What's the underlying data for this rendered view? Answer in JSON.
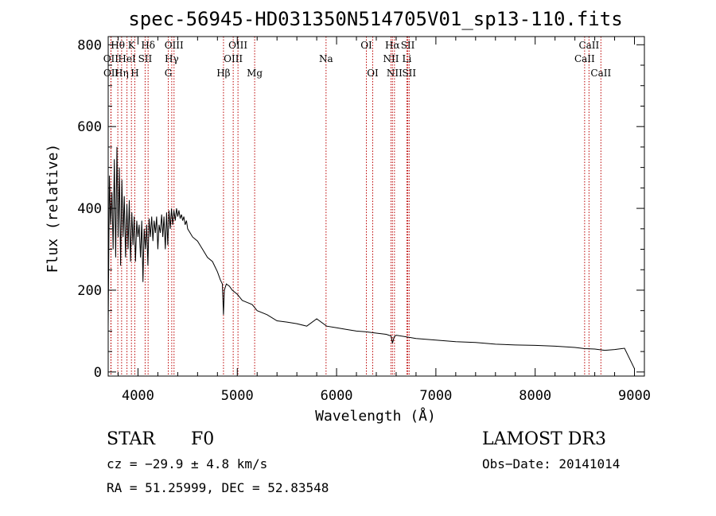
{
  "chart_data": {
    "type": "line",
    "title": "spec-56945-HD031350N514705V01_sp13-110.fits",
    "xlabel": "Wavelength (Å)",
    "ylabel": "Flux (relative)",
    "xlim": [
      3700,
      9100
    ],
    "ylim": [
      -10,
      820
    ],
    "xticks": [
      4000,
      5000,
      6000,
      7000,
      8000,
      9000
    ],
    "yticks": [
      0,
      200,
      400,
      600,
      800
    ],
    "series": [
      {
        "name": "flux",
        "x": [
          3700,
          3712,
          3725,
          3738,
          3750,
          3762,
          3775,
          3788,
          3800,
          3812,
          3825,
          3838,
          3850,
          3862,
          3875,
          3888,
          3900,
          3912,
          3925,
          3938,
          3950,
          3962,
          3975,
          3988,
          4000,
          4012,
          4025,
          4038,
          4050,
          4062,
          4075,
          4088,
          4100,
          4112,
          4125,
          4138,
          4150,
          4162,
          4175,
          4188,
          4200,
          4212,
          4225,
          4238,
          4250,
          4262,
          4275,
          4288,
          4300,
          4312,
          4325,
          4338,
          4350,
          4362,
          4375,
          4388,
          4400,
          4412,
          4425,
          4438,
          4450,
          4462,
          4475,
          4488,
          4500,
          4550,
          4600,
          4650,
          4700,
          4750,
          4800,
          4830,
          4850,
          4861,
          4870,
          4890,
          4920,
          4950,
          5000,
          5050,
          5100,
          5150,
          5200,
          5300,
          5400,
          5500,
          5600,
          5700,
          5800,
          5900,
          6000,
          6100,
          6200,
          6300,
          6400,
          6500,
          6550,
          6563,
          6580,
          6600,
          6700,
          6800,
          7000,
          7200,
          7400,
          7600,
          7800,
          8000,
          8200,
          8400,
          8500,
          8600,
          8700,
          8800,
          8900,
          9000
        ],
        "values": [
          110,
          480,
          360,
          440,
          300,
          520,
          280,
          550,
          330,
          500,
          260,
          470,
          330,
          430,
          280,
          410,
          300,
          420,
          270,
          390,
          310,
          380,
          270,
          370,
          330,
          360,
          280,
          370,
          220,
          350,
          300,
          360,
          260,
          375,
          330,
          380,
          320,
          370,
          340,
          380,
          300,
          360,
          340,
          385,
          330,
          380,
          300,
          390,
          310,
          395,
          350,
          400,
          360,
          395,
          370,
          400,
          380,
          395,
          375,
          385,
          370,
          380,
          360,
          370,
          350,
          330,
          320,
          300,
          280,
          270,
          245,
          225,
          215,
          140,
          200,
          215,
          210,
          200,
          190,
          175,
          170,
          165,
          150,
          140,
          125,
          122,
          118,
          112,
          130,
          112,
          108,
          104,
          100,
          98,
          95,
          92,
          88,
          70,
          86,
          90,
          86,
          82,
          78,
          74,
          72,
          68,
          66,
          65,
          63,
          60,
          57,
          56,
          53,
          55,
          58,
          8
        ]
      }
    ],
    "lines": [
      {
        "name": "OII",
        "x": 3727,
        "row": 2
      },
      {
        "name": "OII",
        "x": 3729,
        "row": 3
      },
      {
        "name": "Hθ",
        "x": 3797,
        "row": 1
      },
      {
        "name": "Hη",
        "x": 3835,
        "row": 3
      },
      {
        "name": "HeI",
        "x": 3889,
        "row": 2
      },
      {
        "name": "K",
        "x": 3934,
        "row": 1
      },
      {
        "name": "H",
        "x": 3968,
        "row": 3
      },
      {
        "name": "SII",
        "x": 4072,
        "row": 2
      },
      {
        "name": "Hδ",
        "x": 4102,
        "row": 1
      },
      {
        "name": "OIII",
        "x": 4363,
        "row": 1
      },
      {
        "name": "Hγ",
        "x": 4340,
        "row": 2
      },
      {
        "name": "G",
        "x": 4305,
        "row": 3
      },
      {
        "name": "Hβ",
        "x": 4861,
        "row": 3
      },
      {
        "name": "OIII",
        "x": 4959,
        "row": 2
      },
      {
        "name": "OIII",
        "x": 5007,
        "row": 1
      },
      {
        "name": "Mg",
        "x": 5175,
        "row": 3
      },
      {
        "name": "Na",
        "x": 5894,
        "row": 2
      },
      {
        "name": "OI",
        "x": 6300,
        "row": 1
      },
      {
        "name": "OI",
        "x": 6364,
        "row": 3
      },
      {
        "name": "NII",
        "x": 6548,
        "row": 2
      },
      {
        "name": "Hα",
        "x": 6563,
        "row": 1
      },
      {
        "name": "NII",
        "x": 6583,
        "row": 3
      },
      {
        "name": "Li",
        "x": 6708,
        "row": 2
      },
      {
        "name": "SII",
        "x": 6717,
        "row": 1
      },
      {
        "name": "SII",
        "x": 6731,
        "row": 3
      },
      {
        "name": "CaII",
        "x": 8498,
        "row": 2
      },
      {
        "name": "CaII",
        "x": 8542,
        "row": 1
      },
      {
        "name": "CaII",
        "x": 8662,
        "row": 3
      }
    ]
  },
  "info": {
    "object_class": "STAR",
    "subclass": "F0",
    "survey": "LAMOST DR3",
    "cz": "cz = −29.9 ± 4.8 km/s",
    "obs_date": "Obs−Date: 20141014",
    "radec": "RA =  51.25999, DEC =  52.83548"
  }
}
